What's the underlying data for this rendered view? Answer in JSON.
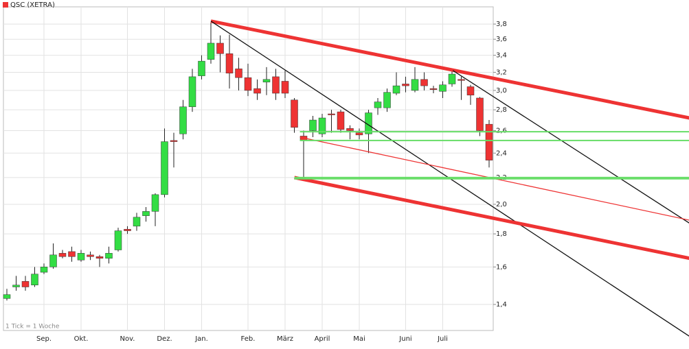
{
  "chart_data": {
    "type": "candlestick",
    "log_scale": true,
    "grid": true,
    "note": "1 Tick = 1 Woche",
    "categories": [
      null,
      null,
      null,
      null,
      "Sep.",
      null,
      null,
      null,
      "Okt.",
      null,
      null,
      null,
      null,
      "Nov.",
      null,
      null,
      null,
      "Dez.",
      null,
      null,
      null,
      "Jan.",
      null,
      null,
      null,
      null,
      "Feb.",
      null,
      null,
      null,
      "März",
      null,
      null,
      null,
      "April",
      null,
      null,
      null,
      "Mai",
      null,
      null,
      null,
      null,
      "Juni",
      null,
      null,
      null,
      "Juli",
      null,
      null,
      null,
      null,
      null
    ],
    "series": [
      {
        "name": "QSC (XETRA)",
        "color": "#ee3333",
        "up_color": "#33dd44",
        "open": [
          1.43,
          1.49,
          1.52,
          1.5,
          1.57,
          1.6,
          1.68,
          1.69,
          1.64,
          1.67,
          1.66,
          1.65,
          1.7,
          1.83,
          1.85,
          1.92,
          1.95,
          2.07,
          2.51,
          2.57,
          2.83,
          3.16,
          3.35,
          3.55,
          3.42,
          3.24,
          3.14,
          3.02,
          3.09,
          3.15,
          3.1,
          2.9,
          2.55,
          2.6,
          2.57,
          2.76,
          2.78,
          2.62,
          2.58,
          2.57,
          2.82,
          2.82,
          2.97,
          3.07,
          3.0,
          3.12,
          3.02,
          2.99,
          3.07,
          3.12,
          3.04,
          2.92,
          2.66
        ],
        "high": [
          1.48,
          1.55,
          1.55,
          1.6,
          1.62,
          1.74,
          1.7,
          1.72,
          1.7,
          1.69,
          1.67,
          1.72,
          1.84,
          1.85,
          1.94,
          1.98,
          2.08,
          2.62,
          2.58,
          2.9,
          3.24,
          3.4,
          3.82,
          3.65,
          3.66,
          3.37,
          3.3,
          3.12,
          3.26,
          3.24,
          3.22,
          2.92,
          2.6,
          2.74,
          2.76,
          2.8,
          2.8,
          2.65,
          2.62,
          2.8,
          2.92,
          3.02,
          3.2,
          3.15,
          3.26,
          3.2,
          3.05,
          3.1,
          3.24,
          3.15,
          3.06,
          2.93,
          2.7
        ],
        "low": [
          1.42,
          1.47,
          1.47,
          1.49,
          1.56,
          1.59,
          1.65,
          1.63,
          1.63,
          1.64,
          1.6,
          1.62,
          1.69,
          1.8,
          1.82,
          1.88,
          1.85,
          2.05,
          2.28,
          2.52,
          2.78,
          3.12,
          3.3,
          3.2,
          3.02,
          3.0,
          2.94,
          2.9,
          2.95,
          2.9,
          2.92,
          2.58,
          2.2,
          2.54,
          2.54,
          2.58,
          2.58,
          2.52,
          2.52,
          2.4,
          2.75,
          2.78,
          2.95,
          2.98,
          2.98,
          3.0,
          2.97,
          2.92,
          3.04,
          2.9,
          2.85,
          2.55,
          2.28
        ],
        "close": [
          1.45,
          1.5,
          1.49,
          1.56,
          1.6,
          1.67,
          1.66,
          1.66,
          1.68,
          1.66,
          1.65,
          1.68,
          1.82,
          1.82,
          1.91,
          1.95,
          2.07,
          2.5,
          2.5,
          2.83,
          3.15,
          3.33,
          3.55,
          3.42,
          3.19,
          3.14,
          3.0,
          2.97,
          3.12,
          2.97,
          2.97,
          2.63,
          2.51,
          2.7,
          2.72,
          2.75,
          2.61,
          2.6,
          2.56,
          2.77,
          2.88,
          2.98,
          3.05,
          3.05,
          3.12,
          3.05,
          3.01,
          3.06,
          3.18,
          3.11,
          2.95,
          2.6,
          2.34
        ]
      }
    ],
    "ylim": [
      1.276,
      4.04
    ],
    "yticks": [
      {
        "value": 1.4,
        "label": "1,4"
      },
      {
        "value": 1.6,
        "label": "1,6"
      },
      {
        "value": 1.8,
        "label": "1,8"
      },
      {
        "value": 2.0,
        "label": "2,0"
      },
      {
        "value": 2.2,
        "label": "2,2"
      },
      {
        "value": 2.4,
        "label": "2,4"
      },
      {
        "value": 2.6,
        "label": "2,6"
      },
      {
        "value": 2.8,
        "label": "2,8"
      },
      {
        "value": 3.0,
        "label": "3,0"
      },
      {
        "value": 3.2,
        "label": "3,2"
      },
      {
        "value": 3.4,
        "label": "3,4"
      },
      {
        "value": 3.6,
        "label": "3,6"
      },
      {
        "value": 3.8,
        "label": "3,8"
      }
    ],
    "trendlines": [
      {
        "color": "#ee3333",
        "width": 5,
        "x": [
          22,
          73.6
        ],
        "y": [
          3.84,
          2.72
        ]
      },
      {
        "color": "#111111",
        "width": 1.3,
        "x": [
          22,
          73.6
        ],
        "y": [
          3.84,
          1.25
        ]
      },
      {
        "color": "#111111",
        "width": 1.3,
        "x": [
          48.1,
          73.6
        ],
        "y": [
          3.22,
          1.87
        ]
      },
      {
        "color": "#ee3333",
        "width": 5,
        "x": [
          31,
          73.6
        ],
        "y": [
          2.2,
          1.65
        ]
      },
      {
        "color": "#ee3333",
        "width": 1.3,
        "x": [
          31.6,
          73.6
        ],
        "y": [
          2.54,
          1.89
        ]
      },
      {
        "color": "#66dd66",
        "width": 2,
        "x": [
          31.6,
          73.6
        ],
        "y": [
          2.59,
          2.59
        ]
      },
      {
        "color": "#66dd66",
        "width": 2,
        "x": [
          31.6,
          73.6
        ],
        "y": [
          2.51,
          2.51
        ]
      },
      {
        "color": "#66dd66",
        "width": 2,
        "x": [
          31,
          73.6
        ],
        "y": [
          2.2,
          2.2
        ]
      },
      {
        "color": "#66dd66",
        "width": 2,
        "x": [
          31,
          73.6
        ],
        "y": [
          2.19,
          2.19
        ]
      }
    ]
  }
}
